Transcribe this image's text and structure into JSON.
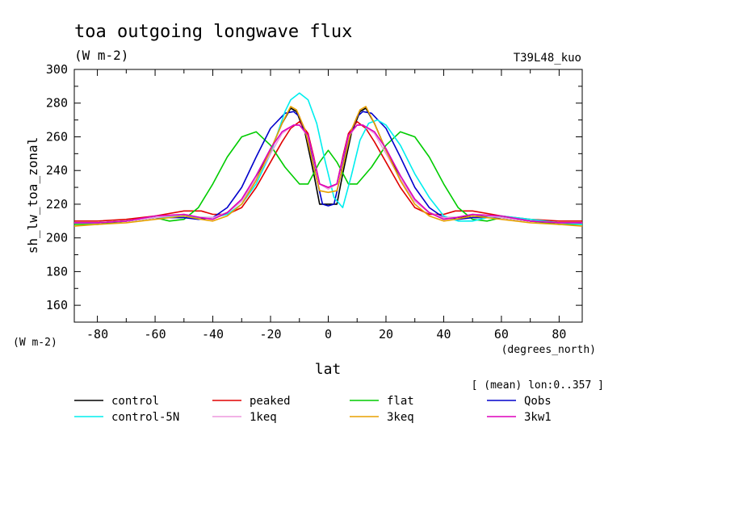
{
  "chart_data": {
    "type": "line",
    "title": "toa outgoing longwave flux",
    "units": "(W m-2)",
    "experiment": "T39L48_kuo",
    "ylabel": "sh_lw_toa_zonal",
    "y_units": "(W m-2)",
    "xlabel": "lat",
    "x_units": "(degrees_north)",
    "subtitle": "[ (mean) lon:0..357 ]",
    "xlim": [
      -88,
      88
    ],
    "ylim": [
      150,
      300
    ],
    "xticks": [
      -80,
      -60,
      -40,
      -20,
      0,
      20,
      40,
      60,
      80
    ],
    "yticks": [
      160,
      180,
      200,
      220,
      240,
      260,
      280,
      300
    ],
    "series": [
      {
        "name": "control",
        "color": "#000000",
        "x": [
          -88,
          -80,
          -70,
          -60,
          -50,
          -44,
          -40,
          -35,
          -30,
          -25,
          -20,
          -16,
          -13,
          -11,
          -8,
          -5,
          -3,
          0,
          3,
          5,
          8,
          11,
          13,
          16,
          20,
          25,
          30,
          35,
          40,
          44,
          50,
          60,
          70,
          80,
          88
        ],
        "y": [
          209,
          209,
          210,
          212,
          213,
          212,
          212,
          215,
          222,
          235,
          252,
          268,
          277,
          275,
          262,
          238,
          220,
          220,
          220,
          238,
          262,
          275,
          277,
          268,
          252,
          235,
          222,
          215,
          212,
          212,
          213,
          212,
          210,
          209,
          209
        ]
      },
      {
        "name": "peaked",
        "color": "#e00000",
        "x": [
          -88,
          -80,
          -70,
          -60,
          -50,
          -44,
          -40,
          -35,
          -30,
          -25,
          -20,
          -16,
          -13,
          -10,
          -7,
          -5,
          -3,
          0,
          3,
          5,
          7,
          10,
          13,
          16,
          20,
          25,
          30,
          35,
          40,
          44,
          50,
          60,
          70,
          80,
          88
        ],
        "y": [
          210,
          210,
          211,
          213,
          216,
          216,
          214,
          214,
          218,
          230,
          245,
          257,
          265,
          269,
          262,
          248,
          232,
          230,
          232,
          248,
          262,
          269,
          265,
          257,
          245,
          230,
          218,
          214,
          214,
          216,
          216,
          213,
          211,
          210,
          210
        ]
      },
      {
        "name": "flat",
        "color": "#00cc00",
        "x": [
          -88,
          -80,
          -70,
          -60,
          -55,
          -50,
          -45,
          -40,
          -35,
          -30,
          -25,
          -20,
          -15,
          -10,
          -7,
          -3,
          0,
          3,
          7,
          10,
          15,
          20,
          25,
          30,
          35,
          40,
          45,
          50,
          55,
          60,
          70,
          80,
          88
        ],
        "y": [
          208,
          208,
          210,
          212,
          210,
          211,
          218,
          232,
          248,
          260,
          263,
          255,
          242,
          232,
          232,
          245,
          252,
          245,
          232,
          232,
          242,
          255,
          263,
          260,
          248,
          232,
          218,
          211,
          210,
          212,
          210,
          208,
          208
        ]
      },
      {
        "name": "Qobs",
        "color": "#0000cc",
        "x": [
          -88,
          -80,
          -70,
          -60,
          -50,
          -45,
          -40,
          -35,
          -30,
          -25,
          -20,
          -15,
          -12,
          -10,
          -7,
          -4,
          -2,
          0,
          2,
          4,
          7,
          10,
          12,
          15,
          20,
          25,
          30,
          35,
          40,
          45,
          50,
          60,
          70,
          80,
          88
        ],
        "y": [
          209,
          209,
          210,
          212,
          212,
          211,
          212,
          218,
          230,
          248,
          265,
          274,
          275,
          272,
          258,
          235,
          220,
          219,
          220,
          235,
          258,
          272,
          275,
          274,
          265,
          248,
          230,
          218,
          212,
          211,
          212,
          212,
          210,
          209,
          209
        ]
      },
      {
        "name": "control-5N",
        "color": "#00eeee",
        "x": [
          -88,
          -80,
          -70,
          -60,
          -50,
          -45,
          -40,
          -35,
          -30,
          -25,
          -20,
          -15,
          -13,
          -10,
          -7,
          -4,
          -1,
          2,
          5,
          8,
          11,
          14,
          17,
          20,
          25,
          30,
          35,
          40,
          45,
          50,
          55,
          60,
          70,
          80,
          88
        ],
        "y": [
          209,
          209,
          210,
          212,
          213,
          212,
          212,
          214,
          220,
          232,
          250,
          275,
          282,
          286,
          282,
          268,
          245,
          224,
          218,
          237,
          258,
          268,
          270,
          267,
          255,
          238,
          224,
          213,
          210,
          210,
          212,
          213,
          211,
          209,
          208
        ]
      },
      {
        "name": "1keq",
        "color": "#ee99dd",
        "x": [
          -88,
          -80,
          -70,
          -60,
          -50,
          -44,
          -40,
          -35,
          -30,
          -25,
          -20,
          -16,
          -12,
          -10,
          -7,
          -5,
          -3,
          0,
          3,
          5,
          7,
          10,
          12,
          16,
          20,
          25,
          30,
          35,
          40,
          44,
          50,
          60,
          70,
          80,
          88
        ],
        "y": [
          209,
          209,
          210,
          212,
          214,
          212,
          212,
          215,
          222,
          235,
          250,
          262,
          267,
          267,
          260,
          247,
          232,
          229,
          232,
          247,
          260,
          267,
          267,
          262,
          250,
          235,
          222,
          215,
          212,
          212,
          214,
          212,
          210,
          209,
          209
        ]
      },
      {
        "name": "3keq",
        "color": "#e8a000",
        "x": [
          -88,
          -80,
          -70,
          -60,
          -50,
          -44,
          -40,
          -35,
          -30,
          -25,
          -20,
          -16,
          -13,
          -11,
          -8,
          -5,
          -3,
          0,
          3,
          5,
          8,
          11,
          13,
          16,
          20,
          25,
          30,
          35,
          40,
          44,
          50,
          60,
          70,
          80,
          88
        ],
        "y": [
          207,
          208,
          209,
          211,
          213,
          211,
          210,
          213,
          220,
          234,
          252,
          268,
          278,
          276,
          264,
          242,
          228,
          227,
          228,
          242,
          264,
          276,
          278,
          268,
          252,
          234,
          220,
          213,
          210,
          211,
          213,
          211,
          209,
          208,
          207
        ]
      },
      {
        "name": "3kw1",
        "color": "#dd00bb",
        "x": [
          -88,
          -80,
          -70,
          -60,
          -50,
          -44,
          -40,
          -35,
          -30,
          -25,
          -20,
          -16,
          -12,
          -10,
          -7,
          -5,
          -3,
          0,
          3,
          5,
          7,
          10,
          12,
          16,
          20,
          25,
          30,
          35,
          40,
          44,
          50,
          60,
          70,
          80,
          88
        ],
        "y": [
          209,
          209,
          210,
          213,
          214,
          212,
          211,
          215,
          223,
          237,
          253,
          263,
          267,
          267,
          261,
          247,
          232,
          230,
          232,
          247,
          261,
          267,
          267,
          263,
          253,
          237,
          223,
          215,
          211,
          212,
          214,
          213,
          210,
          209,
          209
        ]
      }
    ]
  }
}
